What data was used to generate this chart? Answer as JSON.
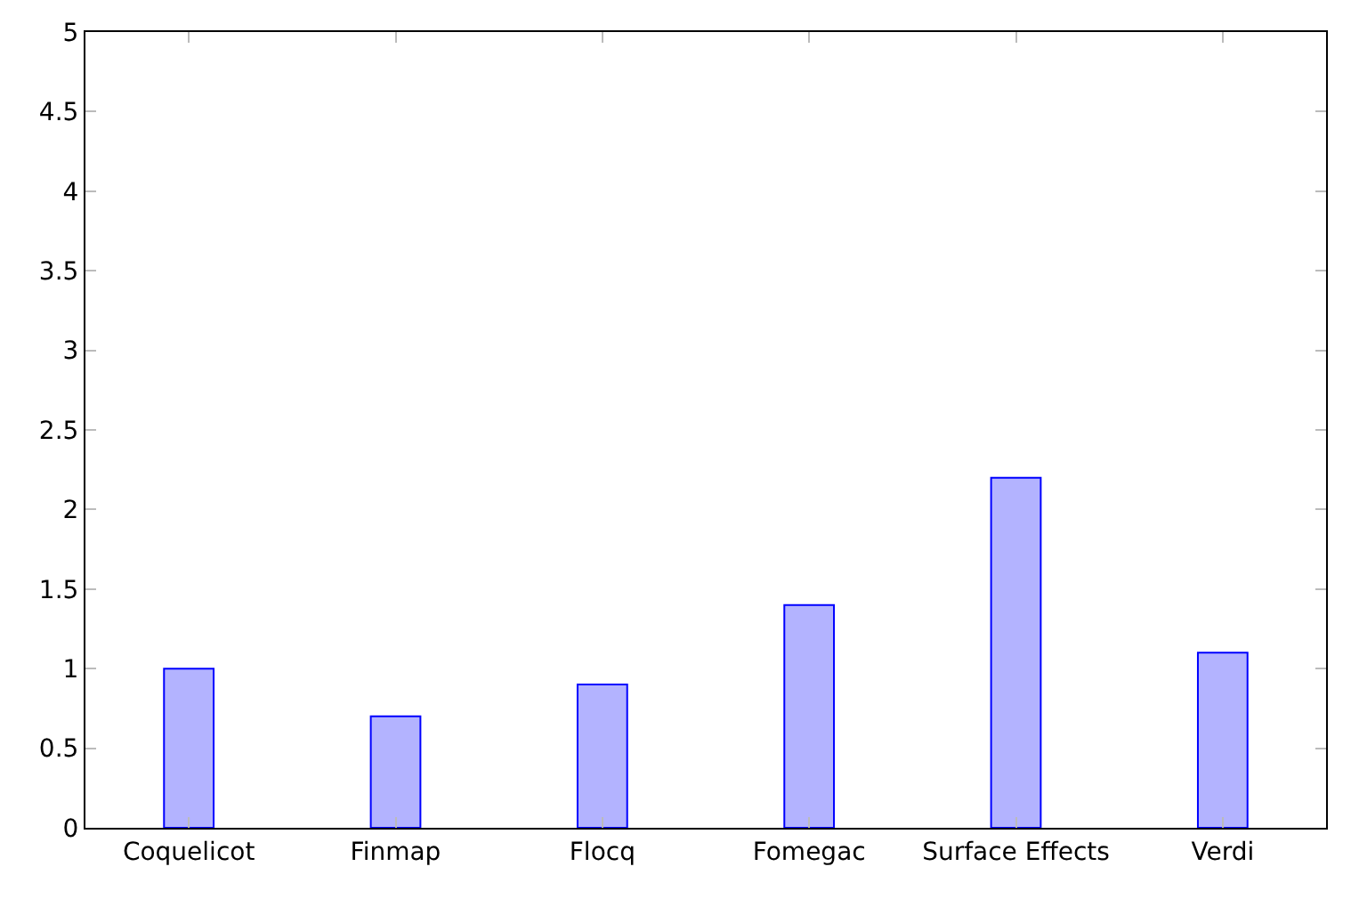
{
  "chart_data": {
    "type": "bar",
    "categories": [
      "Coquelicot",
      "Finmap",
      "Flocq",
      "Fomegac",
      "Surface Effects",
      "Verdi"
    ],
    "values": [
      1.0,
      0.7,
      0.9,
      1.4,
      2.2,
      1.1
    ],
    "color": "#b3b3ff",
    "ylim": [
      0,
      5
    ],
    "yticks": [
      0,
      0.5,
      1,
      1.5,
      2,
      2.5,
      3,
      3.5,
      4,
      4.5,
      5
    ]
  }
}
